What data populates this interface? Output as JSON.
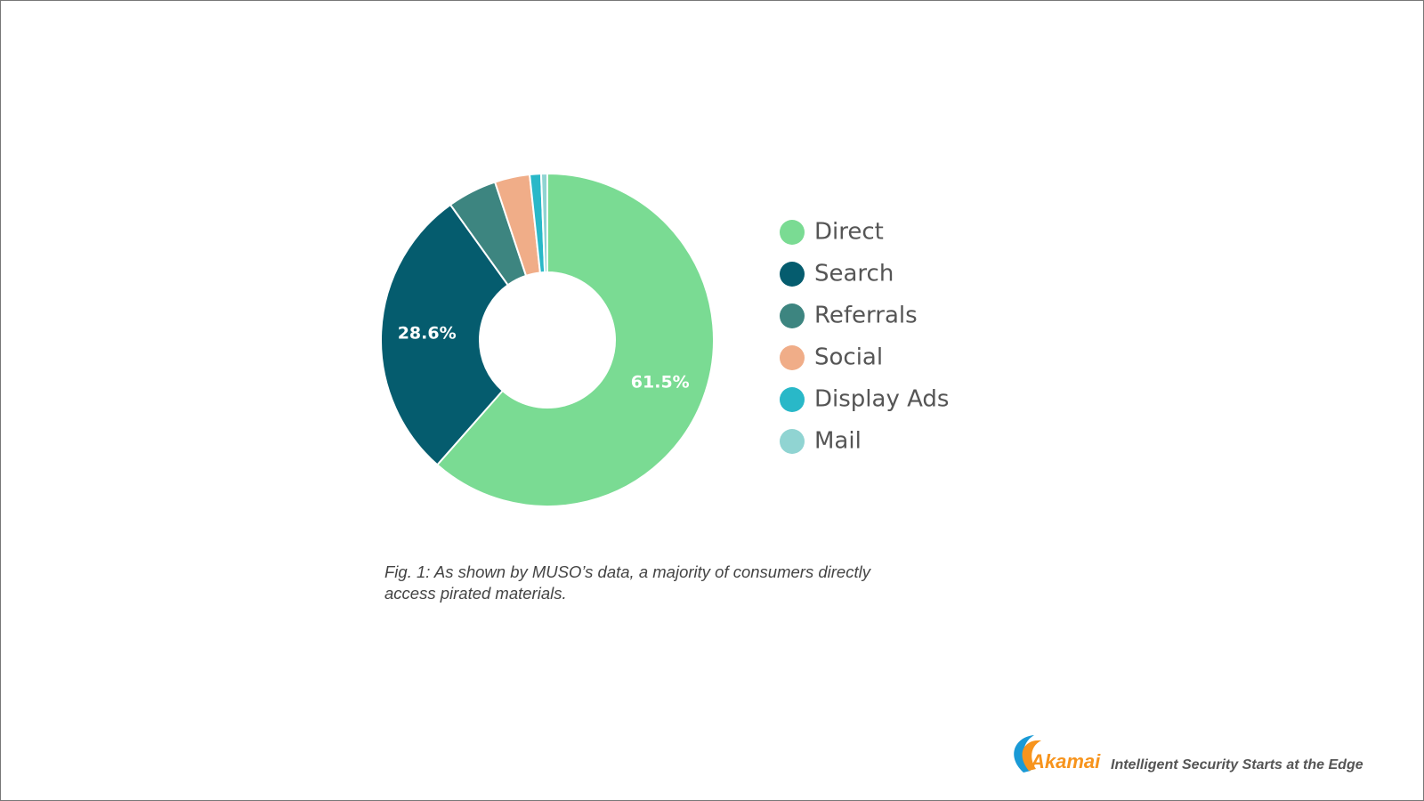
{
  "chart_data": {
    "type": "donut",
    "categories": [
      "Direct",
      "Search",
      "Referrals",
      "Social",
      "Display Ads",
      "Mail"
    ],
    "values": [
      61.5,
      28.6,
      4.8,
      3.4,
      1.1,
      0.6
    ],
    "value_labels": [
      "61.5%",
      "28.6%",
      null,
      null,
      null,
      null
    ],
    "colors": [
      "#7adb93",
      "#055c6e",
      "#3d8580",
      "#f0ad88",
      "#29b8c8",
      "#90d4d2"
    ],
    "legend": "right"
  },
  "caption": "Fig. 1: As shown by MUSO’s data, a majority of consumers directly access pirated materials.",
  "footer": {
    "logo": "Akamai",
    "tagline": "Intelligent Security Starts at the Edge"
  }
}
